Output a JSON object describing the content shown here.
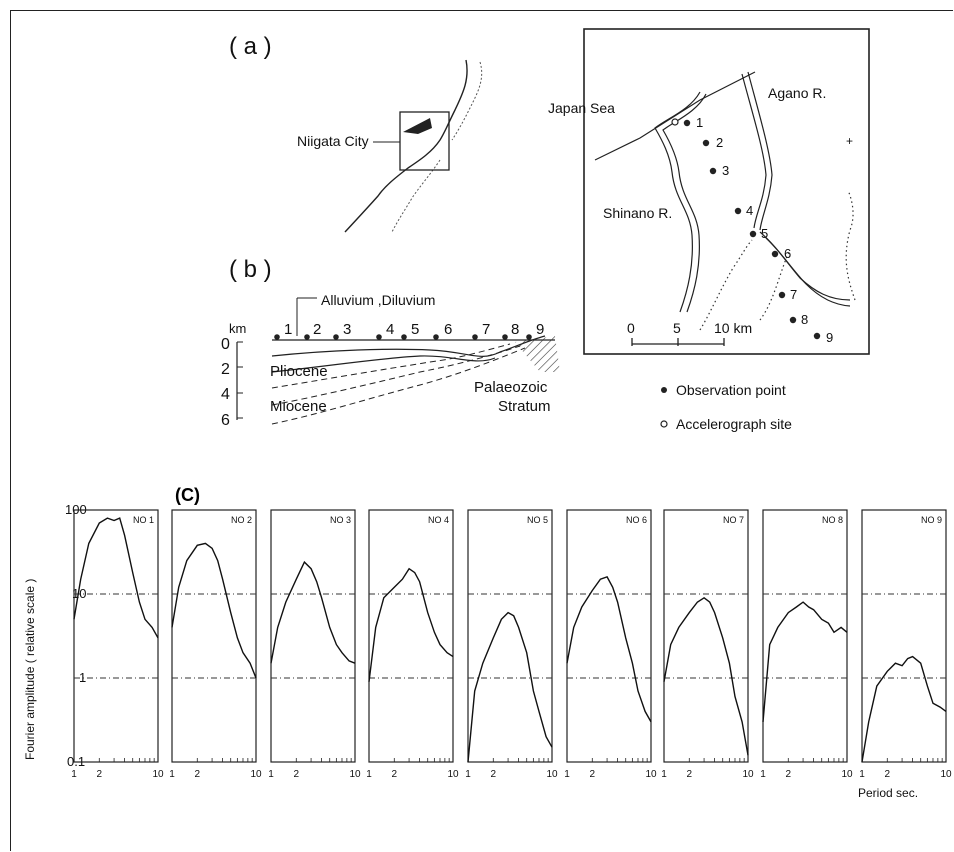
{
  "panel_a": {
    "label": "( a )",
    "locator_label": "Niigata City",
    "map": {
      "sea_label": "Japan Sea",
      "river_agano": "Agano R.",
      "river_shinano": "Shinano R.",
      "points": [
        "1",
        "2",
        "3",
        "4",
        "5",
        "6",
        "7",
        "8",
        "9"
      ],
      "scale": {
        "ticks": [
          "0",
          "5",
          "10 km"
        ]
      }
    },
    "legend": {
      "observation": "Observation point",
      "accelerograph": "Accelerograph site"
    }
  },
  "panel_b": {
    "label": "( b )",
    "annotation": "Alluvium ,Diluvium",
    "depth_unit": "km",
    "depth_ticks": [
      "0",
      "2",
      "4",
      "6"
    ],
    "points": [
      "1",
      "2",
      "3",
      "4",
      "5",
      "6",
      "7",
      "8",
      "9"
    ],
    "layers": [
      "Pliocene",
      "Miocene"
    ],
    "basement_line1": "Palaeozoic",
    "basement_line2": "Stratum"
  },
  "panel_c": {
    "label": "(C)",
    "ylabel": "Fourier amplitude ( relative scale )",
    "xlabel": "Period  sec.",
    "y_ticks": [
      "100",
      "10",
      "1",
      "0.1"
    ],
    "x_ticks": [
      "1",
      "2",
      "10"
    ]
  },
  "chart_data": {
    "type": "line",
    "title": "",
    "xlabel": "Period sec.",
    "ylabel": "Fourier amplitude ( relative scale )",
    "x_scale": "log",
    "y_scale": "log",
    "xlim": [
      1,
      10
    ],
    "ylim": [
      0.1,
      100
    ],
    "grid": "dash-dot lines at 1 and 10",
    "x": [
      1.0,
      1.2,
      1.5,
      2.0,
      2.5,
      3.0,
      3.5,
      4.0,
      5.0,
      6.0,
      7.0,
      8.5,
      10.0
    ],
    "series": [
      {
        "name": "NO 1",
        "values": [
          5,
          15,
          40,
          70,
          80,
          75,
          80,
          50,
          18,
          8,
          5,
          4,
          3
        ]
      },
      {
        "name": "NO 2",
        "values": [
          4,
          12,
          25,
          38,
          40,
          35,
          25,
          15,
          6,
          3,
          2,
          1.5,
          1
        ]
      },
      {
        "name": "NO 3",
        "values": [
          1.5,
          4,
          8,
          15,
          24,
          20,
          14,
          9,
          4,
          2.5,
          2,
          1.6,
          1.5
        ]
      },
      {
        "name": "NO 4",
        "values": [
          0.9,
          4,
          9,
          12,
          15,
          20,
          18,
          14,
          6,
          3.5,
          2.5,
          2,
          1.8
        ]
      },
      {
        "name": "NO 5",
        "values": [
          0.1,
          0.7,
          1.5,
          3,
          5,
          6,
          5.5,
          4,
          2,
          0.7,
          0.4,
          0.2,
          0.15
        ]
      },
      {
        "name": "NO 6",
        "values": [
          1.5,
          4,
          7,
          11,
          15,
          16,
          12,
          8,
          3,
          1.5,
          0.7,
          0.4,
          0.3
        ]
      },
      {
        "name": "NO 7",
        "values": [
          0.9,
          2.5,
          4,
          6,
          8,
          9,
          8,
          6,
          3,
          1.5,
          0.6,
          0.3,
          0.12
        ]
      },
      {
        "name": "NO 8",
        "values": [
          0.3,
          2.5,
          4,
          6,
          7,
          8,
          7,
          6.5,
          5,
          4.5,
          3.5,
          4,
          3.5
        ]
      },
      {
        "name": "NO 9",
        "values": [
          0.1,
          0.3,
          0.8,
          1.2,
          1.5,
          1.4,
          1.7,
          1.8,
          1.5,
          0.8,
          0.5,
          0.45,
          0.4
        ]
      }
    ]
  }
}
